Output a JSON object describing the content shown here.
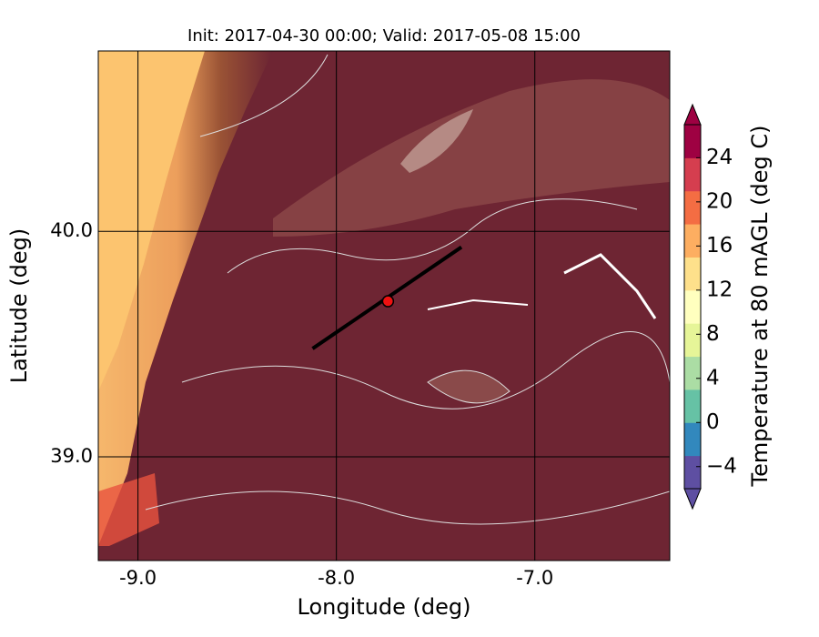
{
  "chart_data": {
    "type": "map",
    "title": "Init: 2017-04-30 00:00; Valid: 2017-05-08 15:00",
    "xlabel": "Longitude (deg)",
    "ylabel": "Latitude (deg)",
    "xlim": [
      -9.2,
      -6.32
    ],
    "ylim": [
      38.54,
      40.8
    ],
    "xticks": [
      {
        "value": -9,
        "label": "-9.0"
      },
      {
        "value": -8,
        "label": "-8.0"
      },
      {
        "value": -7,
        "label": "-7.0"
      }
    ],
    "yticks": [
      {
        "value": 39,
        "label": "39.0"
      },
      {
        "value": 40,
        "label": "40.0"
      }
    ],
    "grid": true,
    "section": {
      "lon": [
        -8.12,
        -7.37
      ],
      "lat": [
        39.48,
        39.93
      ],
      "color": "#000000"
    },
    "point": {
      "lon": -7.74,
      "lat": 39.69,
      "color": "#ee1111"
    },
    "colorbar": {
      "label": "Temperature at 80 mAGL (deg C)",
      "lim": [
        -6,
        27
      ],
      "ticks": [
        {
          "value": -4,
          "label": "−4"
        },
        0,
        4,
        8,
        12,
        16,
        20,
        24
      ],
      "colors": [
        "#5e4fa2",
        "#3288bd",
        "#66c2a5",
        "#abdda4",
        "#e6f598",
        "#ffffbf",
        "#fee08b",
        "#fdae61",
        "#f46d43",
        "#d53e4f",
        "#9e0142"
      ]
    }
  }
}
